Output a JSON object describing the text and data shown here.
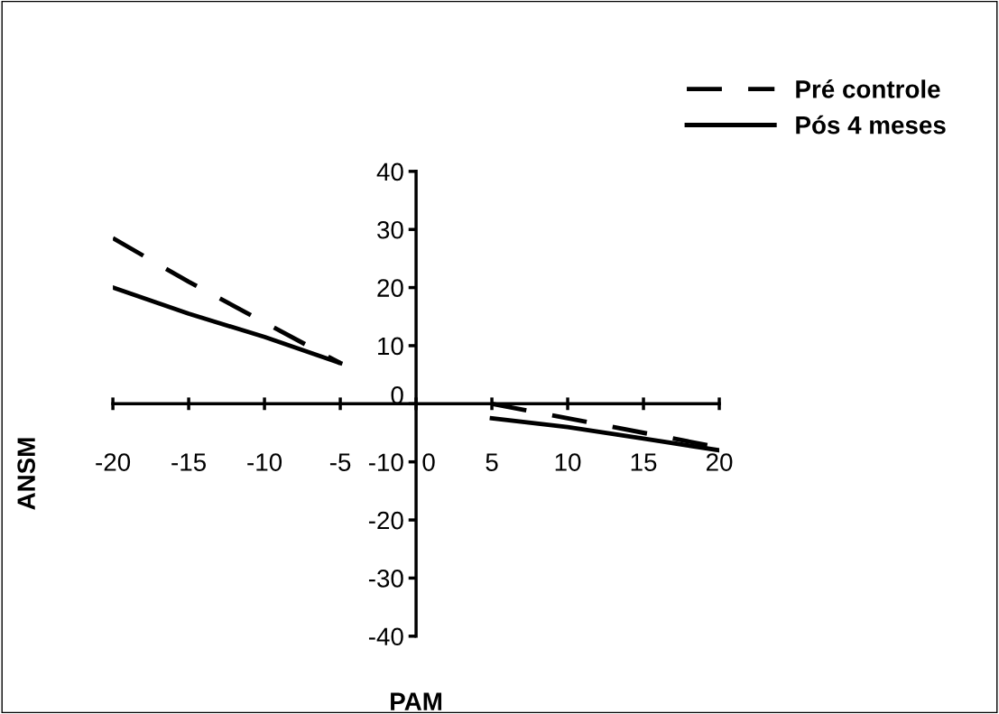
{
  "chart_data": {
    "type": "line",
    "xlabel": "PAM",
    "ylabel": "ANSM",
    "x": [
      -20,
      -15,
      -10,
      -5,
      0,
      5,
      10,
      15,
      20
    ],
    "series": [
      {
        "name": "Pré controle",
        "color": "#000000",
        "line_style": "dashed",
        "values": [
          28.5,
          21,
          14,
          7,
          null,
          0,
          -2.5,
          -5,
          -7.5
        ]
      },
      {
        "name": "Pós 4 meses",
        "color": "#000000",
        "line_style": "solid",
        "values": [
          20,
          15.5,
          11.5,
          7,
          null,
          -2.5,
          -4,
          -6,
          -8
        ]
      }
    ],
    "xlim": [
      -20,
      20
    ],
    "xticks": [
      -20,
      -15,
      -10,
      -5,
      0,
      5,
      10,
      15,
      20
    ],
    "ylim": [
      -40,
      40
    ],
    "yticks": [
      -40,
      -30,
      -20,
      -10,
      0,
      10,
      20,
      30,
      40
    ],
    "grid": false,
    "legend": "top right",
    "marker": "none"
  }
}
